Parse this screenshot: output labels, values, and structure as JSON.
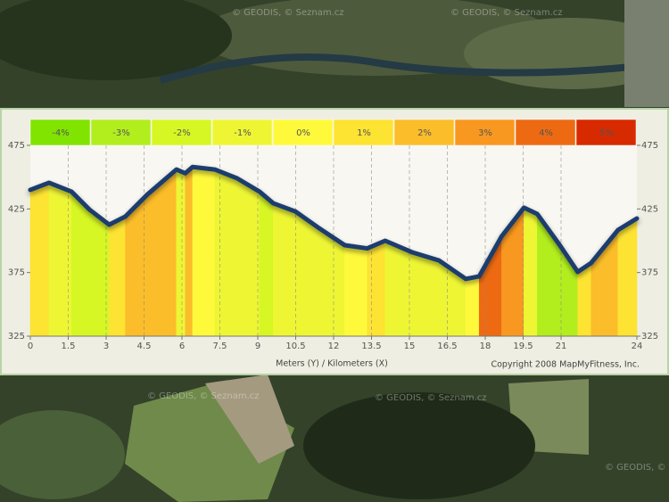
{
  "map_attribution": "© GEODIS, © Seznam.cz",
  "chart_data": {
    "type": "area",
    "x": [
      0,
      0.74,
      1.63,
      2.34,
      3.12,
      3.76,
      4.64,
      5.78,
      6.13,
      6.42,
      7.3,
      8.19,
      9.07,
      9.61,
      10.49,
      11.38,
      12.44,
      13.33,
      14.04,
      15.1,
      16.16,
      17.23,
      17.76,
      18.65,
      19.53,
      20.06,
      20.95,
      21.66,
      22.19,
      23.25,
      24
    ],
    "values": [
      440,
      445.6,
      438.6,
      424.5,
      412.6,
      419,
      436.5,
      456,
      453,
      458,
      456,
      449,
      438.6,
      429.5,
      423,
      410.5,
      396.5,
      394,
      400,
      391,
      384.6,
      370,
      372,
      403.5,
      426,
      421,
      396.5,
      375.5,
      382.5,
      408.4,
      417.5
    ],
    "line_color": "#1d3d6e",
    "xlim": [
      0,
      24
    ],
    "xticks": [
      0,
      1.5,
      3,
      4.5,
      6,
      7.5,
      9,
      10.5,
      12,
      13.5,
      15,
      16.5,
      18,
      19.5,
      21,
      24
    ],
    "ylim": [
      325,
      475
    ],
    "yticks": [
      325,
      375,
      425,
      475
    ],
    "grid": true,
    "axis_label": "Meters (Y) / Kilometers (X)",
    "copyright": "Copyright 2008 MapMyFitness, Inc.",
    "legend": [
      {
        "value": -4,
        "label": "-4%",
        "color": "#80e400"
      },
      {
        "value": -3,
        "label": "-3%",
        "color": "#b2ee1e"
      },
      {
        "value": -2,
        "label": "-2%",
        "color": "#d6f724"
      },
      {
        "value": -1,
        "label": "-1%",
        "color": "#eef634"
      },
      {
        "value": 0,
        "label": "0%",
        "color": "#fff93c"
      },
      {
        "value": 1,
        "label": "1%",
        "color": "#fde332"
      },
      {
        "value": 2,
        "label": "2%",
        "color": "#fbbd2a"
      },
      {
        "value": 3,
        "label": "3%",
        "color": "#f99820"
      },
      {
        "value": 4,
        "label": "4%",
        "color": "#ee6a12"
      },
      {
        "value": 5,
        "label": "5%",
        "color": "#d82a00"
      }
    ]
  }
}
